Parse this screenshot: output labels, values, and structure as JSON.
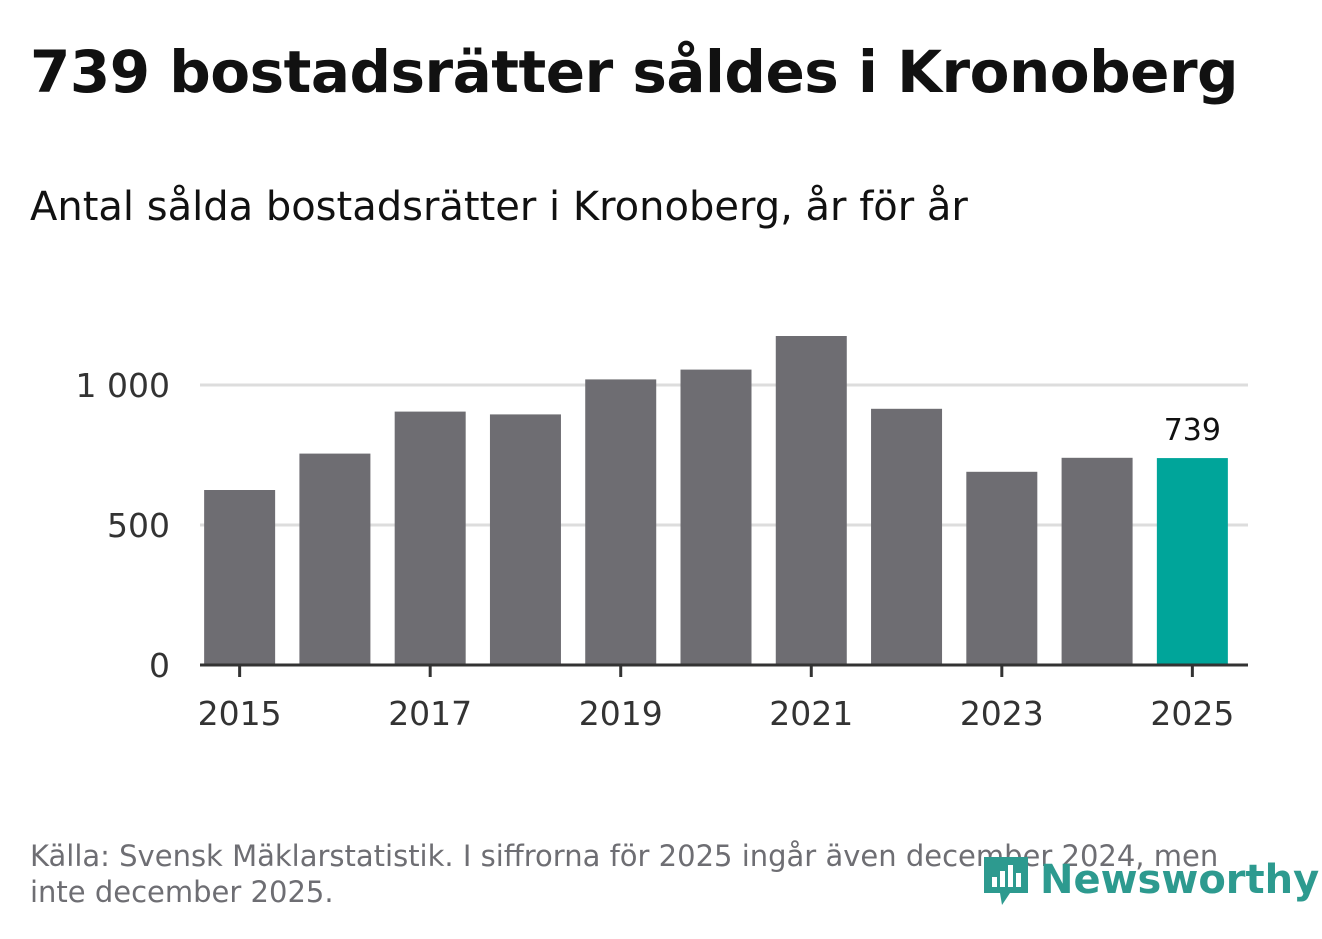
{
  "title": "739 bostadsrätter såldes i Kronoberg",
  "subtitle": "Antal sålda bostadsrätter i Kronoberg, år för år",
  "source": "Källa: Svensk Mäklarstatistik. I siffrorna för 2025 ingår även december 2024, men inte december 2025.",
  "brand": {
    "name": "Newsworthy",
    "color": "#2d9a8f",
    "icon": "newsworthy-logo-icon"
  },
  "colors": {
    "bar": "#6e6d72",
    "highlight": "#00a59a",
    "grid": "#dddddd",
    "axis": "#333333"
  },
  "chart_data": {
    "type": "bar",
    "title": "Antal sålda bostadsrätter i Kronoberg, år för år",
    "categories": [
      "2015",
      "2016",
      "2017",
      "2018",
      "2019",
      "2020",
      "2021",
      "2022",
      "2023",
      "2024",
      "2025"
    ],
    "values": [
      625,
      755,
      905,
      895,
      1020,
      1055,
      1175,
      915,
      690,
      740,
      739
    ],
    "highlight_index": 10,
    "data_labels": [
      {
        "index": 10,
        "text": "739"
      }
    ],
    "x_tick_labels": [
      "2015",
      "2017",
      "2019",
      "2021",
      "2023",
      "2025"
    ],
    "y_ticks": [
      0,
      500,
      1000
    ],
    "y_tick_labels": [
      "0",
      "500",
      "1 000"
    ],
    "ylim": [
      0,
      1200
    ],
    "xlabel": "",
    "ylabel": "",
    "grid": true
  }
}
